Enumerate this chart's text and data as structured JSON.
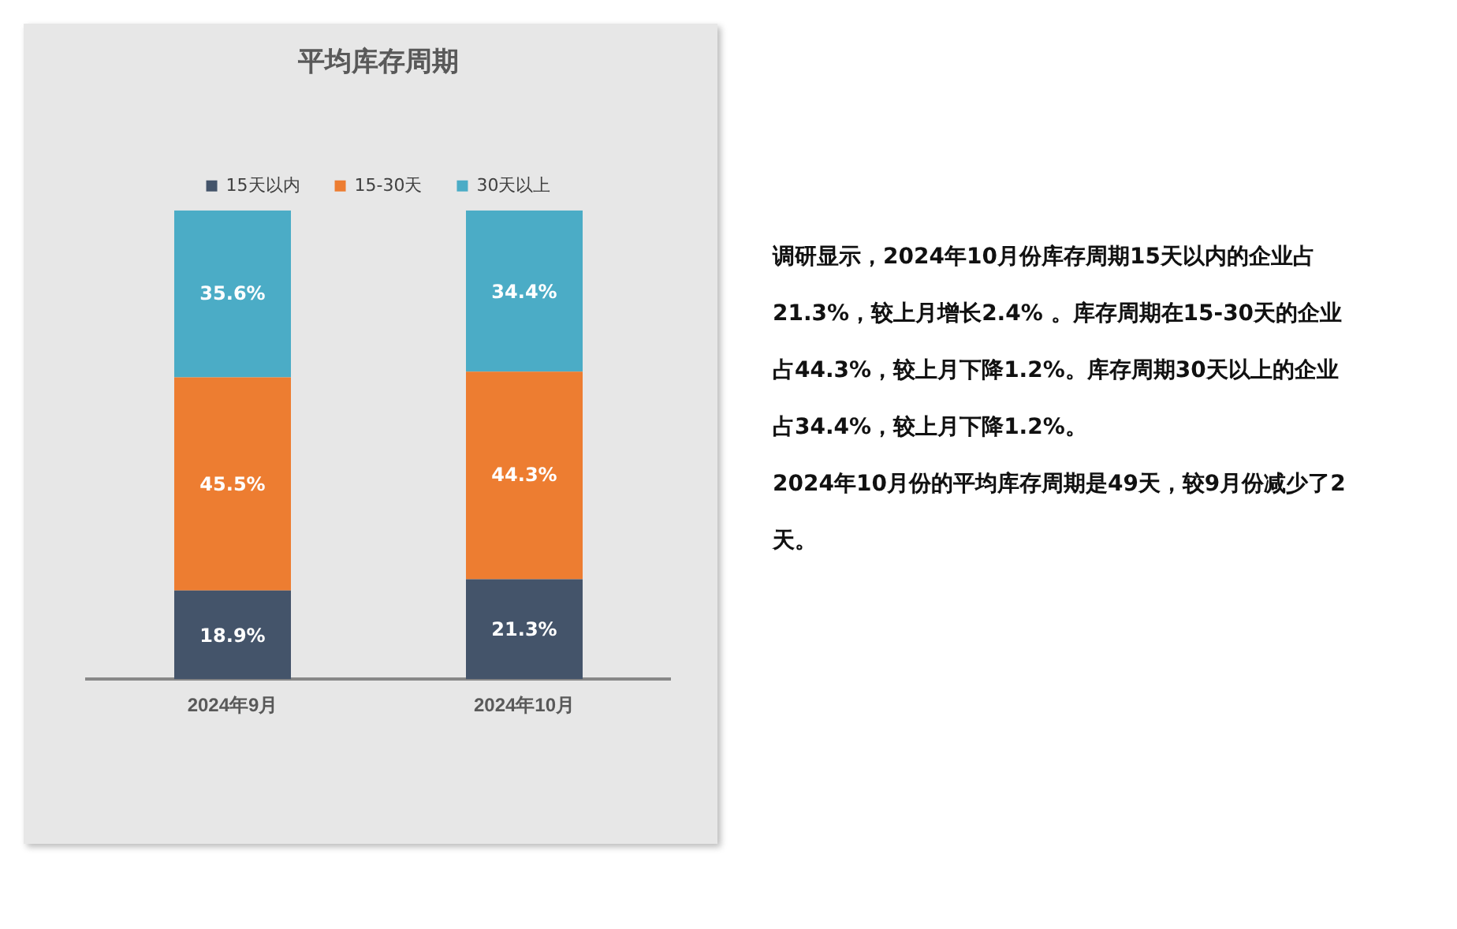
{
  "chart_data": {
    "type": "bar",
    "title": "平均库存周期",
    "categories": [
      "2024年9月",
      "2024年10月"
    ],
    "stacked": true,
    "series": [
      {
        "name": "15天以内",
        "color": "#44546a",
        "values": [
          18.9,
          21.3
        ],
        "value_labels": [
          "18.9%",
          "21.3%"
        ]
      },
      {
        "name": "15-30天",
        "color": "#ed7d31",
        "values": [
          45.5,
          44.3
        ],
        "value_labels": [
          "45.5%",
          "44.3%"
        ]
      },
      {
        "name": "30天以上",
        "color": "#4bacc6",
        "values": [
          35.6,
          34.4
        ],
        "value_labels": [
          "35.6%",
          "34.4%"
        ]
      }
    ],
    "legend": "top",
    "tick_labels": "x",
    "grid": false,
    "annotations": [
      "调研显示，2024年10月份库存周期15天以内的企业占21.3%，较上月增长2.4% 。库存周期在15-30天的企业占44.3%，较上月下降1.2%。库存周期30天以上的企业占34.4%，较上月下降1.2%。",
      "2024年10月份的平均库存周期是49天，较9月份减少了2天。"
    ]
  }
}
